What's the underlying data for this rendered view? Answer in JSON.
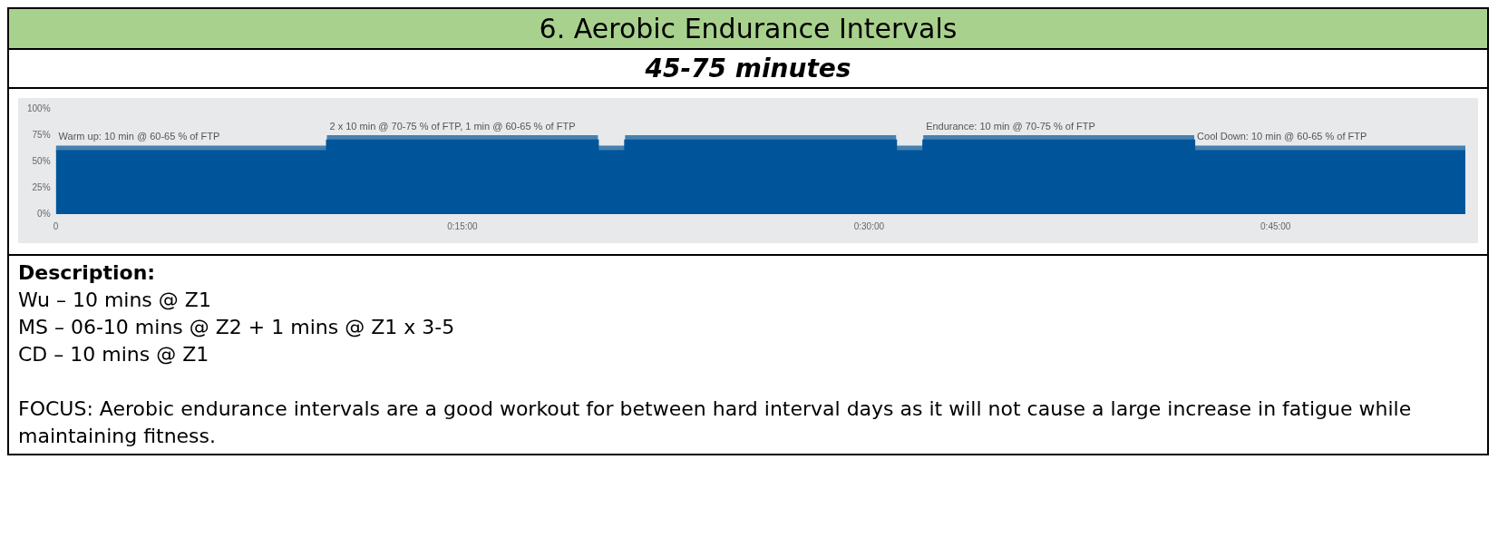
{
  "chart_data": {
    "type": "step",
    "title": "6.   Aerobic Endurance Intervals",
    "subtitle": "45-75 minutes",
    "x": [
      0,
      10,
      20,
      21,
      31,
      32,
      42,
      52
    ],
    "series": [
      {
        "color": "#00559a",
        "values": [
          60,
          70,
          60,
          70,
          60,
          70,
          60,
          60
        ],
        "lower": [
          60,
          70,
          60,
          70,
          60,
          70,
          60,
          60
        ],
        "upper": [
          65,
          75,
          65,
          75,
          65,
          75,
          65,
          65
        ]
      }
    ],
    "xlim": [
      0,
      52
    ],
    "xticks": [
      0,
      {
        "value": 15,
        "label": "0:15:00"
      },
      {
        "value": 30,
        "label": "0:30:00"
      },
      {
        "value": 45,
        "label": "0:45:00"
      }
    ],
    "ylim": [
      0,
      100
    ],
    "yticks": [
      {
        "value": 0,
        "label": "0%"
      },
      {
        "value": 25,
        "label": "25%"
      },
      {
        "value": 50,
        "label": "50%"
      },
      {
        "value": 75,
        "label": "75%"
      },
      {
        "value": 100,
        "label": "100%"
      }
    ],
    "grid": false,
    "legend": false,
    "annotations": [
      {
        "text": "Warm up: 10 min @ 60-65 % of FTP",
        "x": 0,
        "y": 65
      },
      {
        "text": "2 x 10 min @ 70-75 % of FTP, 1 min @ 60-65 % of FTP",
        "x": 10,
        "y": 75
      },
      {
        "text": "Endurance: 10 min @ 70-75 % of FTP",
        "x": 32,
        "y": 75
      },
      {
        "text": "Cool Down: 10 min @ 60-65 % of FTP",
        "x": 42,
        "y": 65
      },
      "Description:",
      "Wu – 10 mins @ Z1",
      "MS – 06-10 mins @ Z2 + 1 mins @ Z1 x 3-5",
      "CD – 10 mins @ Z1",
      "FOCUS: Aerobic endurance intervals are a good workout for between hard interval days as it will not cause a large increase in fatigue while maintaining fitness."
    ]
  }
}
